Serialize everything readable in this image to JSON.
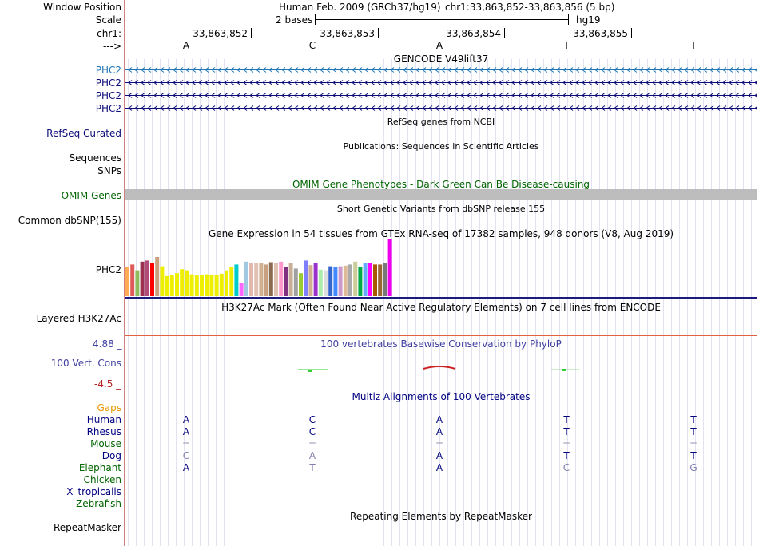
{
  "ruler": {
    "window_position_label": "Window Position",
    "assembly": "Human Feb. 2009 (GRCh37/hg19)",
    "range": "chr1:33,863,852-33,863,856 (5 bp)",
    "scale_label": "Scale",
    "scale_value": "2 bases",
    "db": "hg19",
    "chrom_label": "chr1:",
    "strand_label": "--->",
    "coords": [
      "33,863,852",
      "33,863,853",
      "33,863,854",
      "33,863,855"
    ],
    "bases": [
      "A",
      "C",
      "A",
      "T",
      "T"
    ]
  },
  "tracks": {
    "gencode": {
      "title": "GENCODE V49lift37",
      "rows": [
        "PHC2",
        "PHC2",
        "PHC2",
        "PHC2"
      ],
      "color": "#1f77b4"
    },
    "refseq": {
      "title": "RefSeq genes from NCBI",
      "label": "RefSeq Curated",
      "color": "#0c0c78"
    },
    "publications": {
      "title": "Publications: Sequences in Scientific Articles",
      "label1": "Sequences",
      "label2": "SNPs"
    },
    "omim": {
      "title": "OMIM Gene Phenotypes - Dark Green Can Be Disease-causing",
      "label": "OMIM Genes",
      "color": "#006400"
    },
    "dbsnp": {
      "title": "Short Genetic Variants from dbSNP release 155",
      "label": "Common dbSNP(155)"
    },
    "gtex": {
      "title": "Gene Expression in 54 tissues from GTEx RNA-seq of 17382 samples, 948 donors (V8, Aug 2019)",
      "label": "PHC2"
    },
    "h3k27ac": {
      "title": "H3K27Ac Mark (Often Found Near Active Regulatory Elements) on 7 cell lines from ENCODE",
      "label": "Layered H3K27Ac"
    },
    "phylop": {
      "title": "100 vertebrates Basewise Conservation by PhyloP",
      "label": "100 Vert. Cons",
      "max": "4.88 _",
      "min": "-4.5 _"
    },
    "multiz": {
      "title": "Multiz Alignments of 100 Vertebrates",
      "gaps_label": "Gaps"
    },
    "repeatmasker": {
      "title": "Repeating Elements by RepeatMasker",
      "label": "RepeatMasker"
    }
  },
  "gtex_values": [
    0.5,
    0.55,
    0.45,
    0.6,
    0.62,
    0.58,
    0.68,
    0.52,
    0.35,
    0.37,
    0.4,
    0.47,
    0.45,
    0.38,
    0.36,
    0.37,
    0.38,
    0.37,
    0.37,
    0.39,
    0.45,
    0.5,
    0.55,
    0.23,
    0.6,
    0.58,
    0.57,
    0.57,
    0.55,
    0.59,
    0.58,
    0.6,
    0.5,
    0.58,
    0.48,
    0.4,
    0.62,
    0.54,
    0.58,
    0.46,
    0.45,
    0.52,
    0.5,
    0.52,
    0.53,
    0.55,
    0.6,
    0.5,
    0.57,
    0.57,
    0.55,
    0.55,
    0.58,
    1.0
  ],
  "gtex_colors": [
    "#ffaa55",
    "#e05a5a",
    "#8fbc5f",
    "#9b3050",
    "#b24b78",
    "#ff0000",
    "#c8a080",
    "#eeee00",
    "#eeee00",
    "#eeee00",
    "#eeee00",
    "#eeee00",
    "#eeee00",
    "#eeee00",
    "#eeee00",
    "#eeee00",
    "#eeee00",
    "#eeee00",
    "#eeee00",
    "#eeee00",
    "#eeee00",
    "#eeee00",
    "#00cccc",
    "#ff66ff",
    "#a0c8e0",
    "#e0b8b0",
    "#e0c0b0",
    "#d0b090",
    "#c8a080",
    "#8b6b50",
    "#e0c0b0",
    "#ff99cc",
    "#803080",
    "#c8b098",
    "#a0a0a0",
    "#99cc33",
    "#8080ff",
    "#d0b090",
    "#9932cc",
    "#aaeeaa",
    "#dddddd",
    "#3366cc",
    "#4488ff",
    "#cc99cc",
    "#ddbb99",
    "#aaaaaa",
    "#cccc99",
    "#00aa44",
    "#66aaff",
    "#ff00ff",
    "#aa5500",
    "#996633",
    "#777777",
    "#ee00ee"
  ],
  "multiz_species": [
    {
      "name": "Human",
      "color": "#000080",
      "bases": [
        "A",
        "C",
        "A",
        "T",
        "T"
      ],
      "bcolor": "#000080"
    },
    {
      "name": "Rhesus",
      "color": "#000080",
      "bases": [
        "A",
        "C",
        "A",
        "T",
        "T"
      ],
      "bcolor": "#000080"
    },
    {
      "name": "Mouse",
      "color": "#006400",
      "bases": [
        "=",
        "=",
        "=",
        "=",
        "="
      ],
      "bcolor": "#9090b0"
    },
    {
      "name": "Dog",
      "color": "#000080",
      "bases": [
        "C",
        "A",
        "A",
        "T",
        "T"
      ],
      "bcolor": "#000080"
    },
    {
      "name": "Elephant",
      "color": "#006400",
      "bases": [
        "A",
        "T",
        "A",
        "C",
        "G"
      ],
      "bcolor": "#000080"
    },
    {
      "name": "Chicken",
      "color": "#006400",
      "bases": [
        "",
        "",
        "",
        "",
        ""
      ],
      "bcolor": "#000080"
    },
    {
      "name": "X_tropicalis",
      "color": "#000080",
      "bases": [
        "",
        "",
        "",
        "",
        ""
      ],
      "bcolor": "#000080"
    },
    {
      "name": "Zebrafish",
      "color": "#006400",
      "bases": [
        "",
        "",
        "",
        "",
        ""
      ],
      "bcolor": "#000080"
    }
  ]
}
